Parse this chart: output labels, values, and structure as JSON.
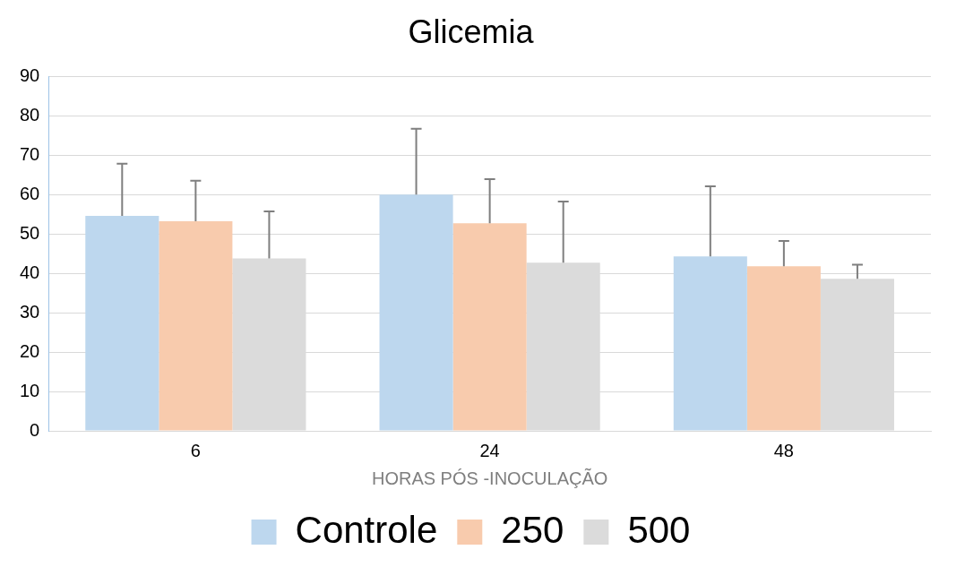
{
  "chart_data": {
    "type": "bar",
    "title": "Glicemia",
    "xlabel": "HORAS PÓS -INOCULAÇÃO",
    "categories": [
      "6",
      "24",
      "48"
    ],
    "series": [
      {
        "name": "Controle",
        "color": "#bdd7ee",
        "values": [
          54.6,
          60.0,
          44.3
        ],
        "errors": [
          [
            54.6,
            67.8
          ],
          [
            60.0,
            76.7
          ],
          [
            44.3,
            62.1
          ]
        ]
      },
      {
        "name": "250",
        "color": "#f8cbad",
        "values": [
          53.2,
          52.7,
          41.8
        ],
        "errors": [
          [
            53.2,
            63.5
          ],
          [
            52.7,
            63.9
          ],
          [
            41.8,
            48.2
          ]
        ]
      },
      {
        "name": "500",
        "color": "#dbdbdb",
        "values": [
          43.8,
          42.7,
          38.6
        ],
        "errors": [
          [
            43.8,
            55.7
          ],
          [
            42.7,
            58.2
          ],
          [
            38.6,
            42.2
          ]
        ]
      }
    ],
    "ylim": [
      0,
      90
    ],
    "yticks": [
      0,
      10,
      20,
      30,
      40,
      50,
      60,
      70,
      80,
      90
    ],
    "grid": "y",
    "legend": "bottom"
  }
}
